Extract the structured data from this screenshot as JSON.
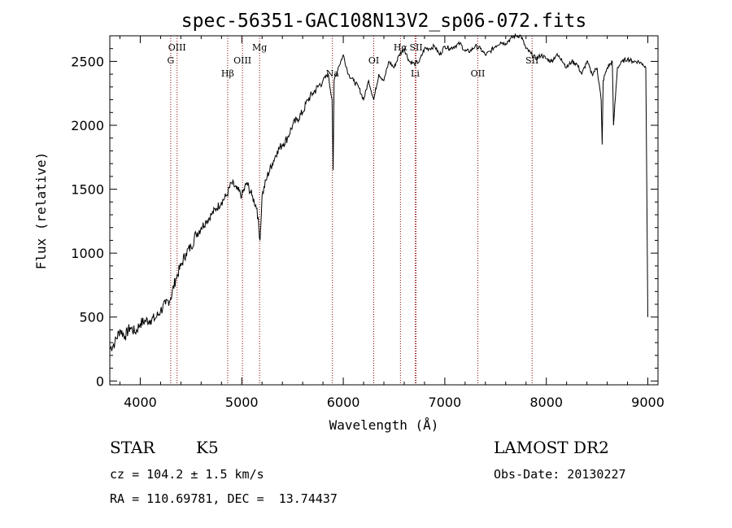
{
  "chart_data": {
    "type": "line",
    "title": "spec-56351-GAC108N13V2_sp06-072.fits",
    "xlabel": "Wavelength (Å)",
    "ylabel": "Flux (relative)",
    "xlim": [
      3700,
      9100
    ],
    "ylim": [
      -30,
      2700
    ],
    "x_ticks": [
      4000,
      5000,
      6000,
      7000,
      8000,
      9000
    ],
    "y_ticks": [
      0,
      500,
      1000,
      1500,
      2000,
      2500
    ],
    "grid": false,
    "series": [
      {
        "x": [
          3700,
          3750,
          3800,
          3850,
          3900,
          3950,
          4000,
          4050,
          4100,
          4150,
          4200,
          4250,
          4300,
          4350,
          4400,
          4450,
          4500,
          4550,
          4600,
          4650,
          4700,
          4750,
          4800,
          4850,
          4900,
          4950,
          5000,
          5050,
          5100,
          5150,
          5180,
          5200,
          5250,
          5300,
          5350,
          5400,
          5450,
          5500,
          5550,
          5600,
          5650,
          5700,
          5750,
          5800,
          5850,
          5890,
          5900,
          5910,
          5950,
          6000,
          6050,
          6100,
          6150,
          6200,
          6250,
          6300,
          6350,
          6400,
          6450,
          6500,
          6550,
          6600,
          6650,
          6700,
          6750,
          6800,
          6850,
          6900,
          6950,
          7000,
          7050,
          7100,
          7150,
          7200,
          7250,
          7300,
          7350,
          7400,
          7450,
          7500,
          7550,
          7600,
          7650,
          7700,
          7750,
          7800,
          7850,
          7900,
          7950,
          8000,
          8050,
          8100,
          8150,
          8200,
          8250,
          8300,
          8350,
          8400,
          8450,
          8500,
          8540,
          8550,
          8560,
          8600,
          8650,
          8662,
          8700,
          8750,
          8800,
          8850,
          8900,
          8950,
          8980,
          9000
        ],
        "y": [
          250,
          300,
          400,
          350,
          420,
          380,
          450,
          470,
          480,
          490,
          550,
          600,
          650,
          800,
          900,
          1000,
          1050,
          1150,
          1200,
          1250,
          1300,
          1350,
          1400,
          1450,
          1550,
          1500,
          1450,
          1550,
          1450,
          1350,
          1100,
          1450,
          1600,
          1700,
          1800,
          1850,
          1900,
          2000,
          2050,
          2100,
          2200,
          2250,
          2300,
          2350,
          2400,
          2200,
          1650,
          2350,
          2450,
          2550,
          2400,
          2350,
          2300,
          2200,
          2350,
          2200,
          2400,
          2350,
          2500,
          2450,
          2550,
          2600,
          2500,
          2480,
          2500,
          2600,
          2600,
          2620,
          2550,
          2620,
          2600,
          2620,
          2640,
          2580,
          2580,
          2620,
          2600,
          2550,
          2580,
          2620,
          2650,
          2640,
          2680,
          2700,
          2700,
          2600,
          2560,
          2520,
          2550,
          2520,
          2500,
          2550,
          2520,
          2450,
          2500,
          2480,
          2400,
          2500,
          2400,
          2450,
          2200,
          1850,
          2350,
          2450,
          2500,
          2000,
          2450,
          2500,
          2520,
          2500,
          2500,
          2480,
          2450,
          500
        ]
      }
    ],
    "annotations": [
      {
        "text": "OIII",
        "x": 4363,
        "row": 1
      },
      {
        "text": "G",
        "x": 4300,
        "row": 2
      },
      {
        "text": "Hβ",
        "x": 4861,
        "row": 3
      },
      {
        "text": "OIII",
        "x": 5007,
        "row": 2
      },
      {
        "text": "Mg",
        "x": 5175,
        "row": 1
      },
      {
        "text": "Na",
        "x": 5893,
        "row": 3
      },
      {
        "text": "OI",
        "x": 6300,
        "row": 2
      },
      {
        "text": "Hα",
        "x": 6563,
        "row": 1
      },
      {
        "text": "SII",
        "x": 6717,
        "row": 1
      },
      {
        "text": "Li",
        "x": 6708,
        "row": 3
      },
      {
        "text": "OII",
        "x": 7325,
        "row": 3
      },
      {
        "text": "SII",
        "x": 7860,
        "row": 2
      }
    ]
  },
  "info": {
    "class_label": "STAR",
    "subclass": "K5",
    "redshift": "cz = 104.2 ± 1.5 km/s",
    "coords": "RA = 110.69781, DEC =  13.74437",
    "survey": "LAMOST DR2",
    "obs_date": "Obs-Date: 20130227"
  }
}
